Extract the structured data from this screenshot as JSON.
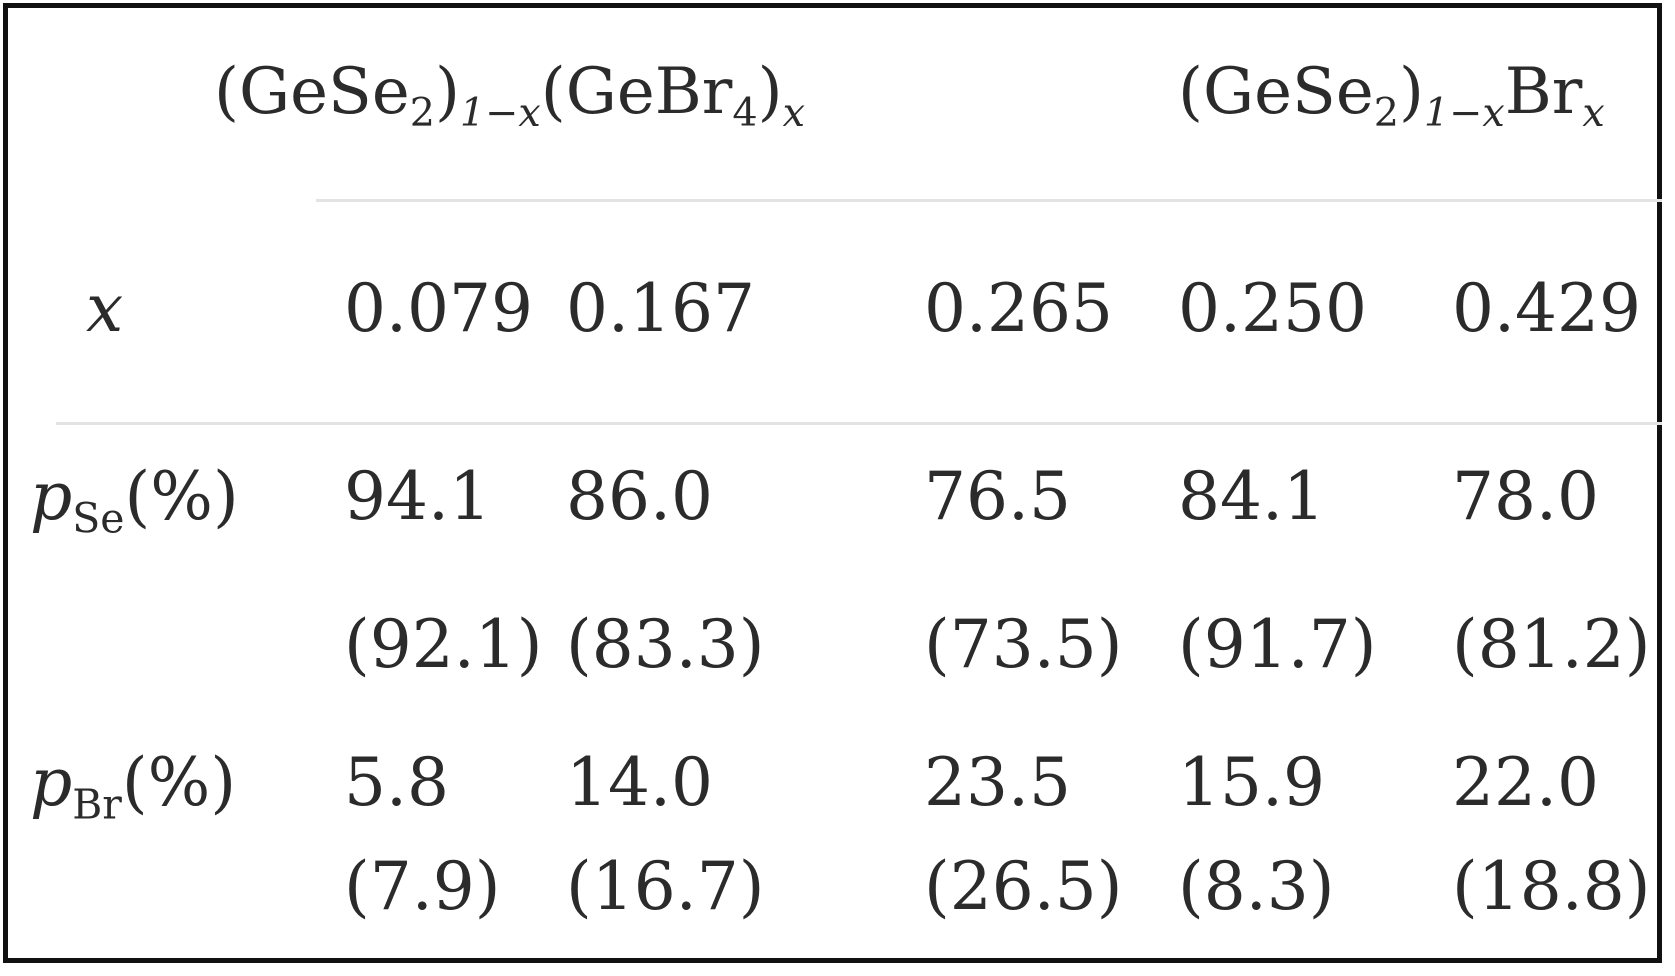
{
  "table": {
    "groups": [
      {
        "open": "(GeSe",
        "sub1": "2",
        "close": ")",
        "sub2": "1−x",
        "mid": "(GeBr",
        "sub3": "4",
        "close2": ")",
        "sub4": "x"
      },
      {
        "open": "(GeSe",
        "sub1": "2",
        "close": ")",
        "sub2": "1−x",
        "mid": "Br",
        "sub4": "x"
      }
    ],
    "rows": [
      {
        "label": "x",
        "values": [
          "0.079",
          "0.167",
          "0.265",
          "0.250",
          "0.429"
        ]
      },
      {
        "label_main": "p",
        "label_sub": "Se",
        "label_unit": "(%)",
        "values": [
          "94.1",
          "86.0",
          "76.5",
          "84.1",
          "78.0"
        ],
        "values_paren": [
          "(92.1)",
          "(83.3)",
          "(73.5)",
          "(91.7)",
          "(81.2)"
        ]
      },
      {
        "label_main": "p",
        "label_sub": "Br",
        "label_unit": "(%)",
        "values": [
          "5.8",
          "14.0",
          "23.5",
          "15.9",
          "22.0"
        ],
        "values_paren": [
          "(7.9)",
          "(16.7)",
          "(26.5)",
          "(8.3)",
          "(18.8)"
        ]
      }
    ]
  }
}
